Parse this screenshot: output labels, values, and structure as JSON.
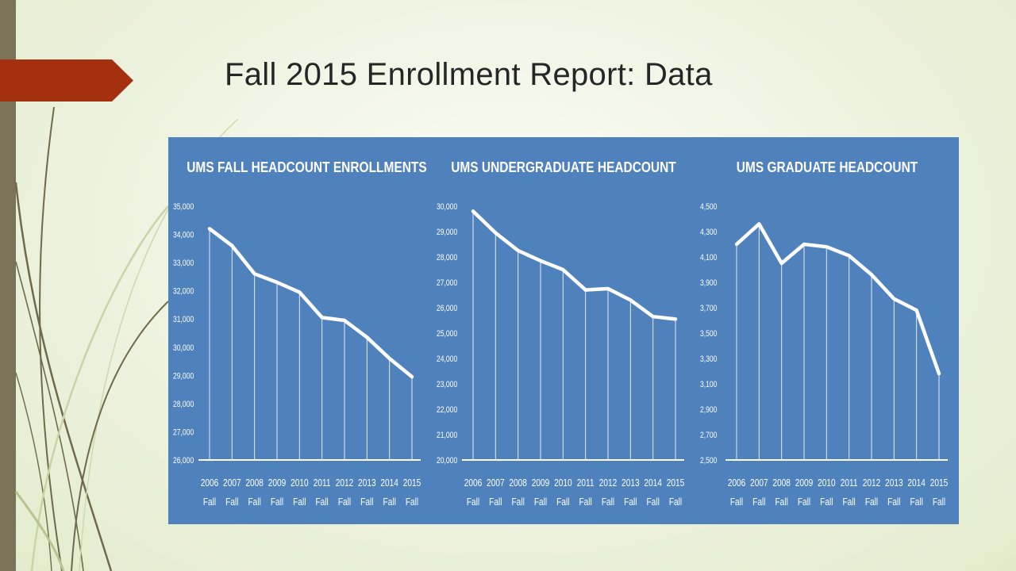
{
  "slide": {
    "title": "Fall 2015 Enrollment Report: Data"
  },
  "colors": {
    "panel": "#4f81bd",
    "line": "#ffffff",
    "accent_arrow": "#a5300f",
    "left_bar": "#7a7357"
  },
  "chart_data": [
    {
      "type": "line",
      "title": "UMS FALL HEADCOUNT ENROLLMENTS",
      "categories": [
        "2006 Fall",
        "2007 Fall",
        "2008 Fall",
        "2009 Fall",
        "2010 Fall",
        "2011 Fall",
        "2012 Fall",
        "2013 Fall",
        "2014 Fall",
        "2015 Fall"
      ],
      "x_tick_lines": [
        [
          "2006",
          "Fall"
        ],
        [
          "2007",
          "Fall"
        ],
        [
          "2008",
          "Fall"
        ],
        [
          "2009",
          "Fall"
        ],
        [
          "2010",
          "Fall"
        ],
        [
          "2011",
          "Fall"
        ],
        [
          "2012",
          "Fall"
        ],
        [
          "2013",
          "Fall"
        ],
        [
          "2014",
          "Fall"
        ],
        [
          "2015",
          "Fall"
        ]
      ],
      "values": [
        34200,
        33600,
        32600,
        32300,
        31950,
        31050,
        30950,
        30350,
        29600,
        28950
      ],
      "ylim": [
        26000,
        35000
      ],
      "yticks": [
        26000,
        27000,
        28000,
        29000,
        30000,
        31000,
        32000,
        33000,
        34000,
        35000
      ],
      "ytick_labels": [
        "26,000",
        "27,000",
        "28,000",
        "29,000",
        "30,000",
        "31,000",
        "32,000",
        "33,000",
        "34,000",
        "35,000"
      ],
      "drop_lines": true,
      "grid": false,
      "legend": "none"
    },
    {
      "type": "line",
      "title": "UMS UNDERGRADUATE HEADCOUNT",
      "categories": [
        "2006 Fall",
        "2007 Fall",
        "2008 Fall",
        "2009 Fall",
        "2010 Fall",
        "2011 Fall",
        "2012 Fall",
        "2013 Fall",
        "2014 Fall",
        "2015 Fall"
      ],
      "x_tick_lines": [
        [
          "2006",
          "Fall"
        ],
        [
          "2007",
          "Fall"
        ],
        [
          "2008",
          "Fall"
        ],
        [
          "2009",
          "Fall"
        ],
        [
          "2010",
          "Fall"
        ],
        [
          "2011",
          "Fall"
        ],
        [
          "2012",
          "Fall"
        ],
        [
          "2013",
          "Fall"
        ],
        [
          "2014",
          "Fall"
        ],
        [
          "2015",
          "Fall"
        ]
      ],
      "values": [
        29800,
        28950,
        28250,
        27850,
        27500,
        26700,
        26750,
        26300,
        25650,
        25550
      ],
      "ylim": [
        20000,
        30000
      ],
      "yticks": [
        20000,
        21000,
        22000,
        23000,
        24000,
        25000,
        26000,
        27000,
        28000,
        29000,
        30000
      ],
      "ytick_labels": [
        "20,000",
        "21,000",
        "22,000",
        "23,000",
        "24,000",
        "25,000",
        "26,000",
        "27,000",
        "28,000",
        "29,000",
        "30,000"
      ],
      "drop_lines": true,
      "grid": false,
      "legend": "none"
    },
    {
      "type": "line",
      "title": "UMS GRADUATE HEADCOUNT",
      "categories": [
        "2006 Fall",
        "2007 Fall",
        "2008 Fall",
        "2009 Fall",
        "2010 Fall",
        "2011 Fall",
        "2012 Fall",
        "2013 Fall",
        "2014 Fall",
        "2015 Fall"
      ],
      "x_tick_lines": [
        [
          "2006",
          "Fall"
        ],
        [
          "2007",
          "Fall"
        ],
        [
          "2008",
          "Fall"
        ],
        [
          "2009",
          "Fall"
        ],
        [
          "2010",
          "Fall"
        ],
        [
          "2011",
          "Fall"
        ],
        [
          "2012",
          "Fall"
        ],
        [
          "2013",
          "Fall"
        ],
        [
          "2014",
          "Fall"
        ],
        [
          "2015",
          "Fall"
        ]
      ],
      "values": [
        4200,
        4360,
        4050,
        4200,
        4180,
        4110,
        3960,
        3770,
        3680,
        3180
      ],
      "ylim": [
        2500,
        4500
      ],
      "yticks": [
        2500,
        2700,
        2900,
        3100,
        3300,
        3500,
        3700,
        3900,
        4100,
        4300,
        4500
      ],
      "ytick_labels": [
        "2,500",
        "2,700",
        "2,900",
        "3,100",
        "3,300",
        "3,500",
        "3,700",
        "3,900",
        "4,100",
        "4,300",
        "4,500"
      ],
      "drop_lines": true,
      "grid": false,
      "legend": "none"
    }
  ]
}
